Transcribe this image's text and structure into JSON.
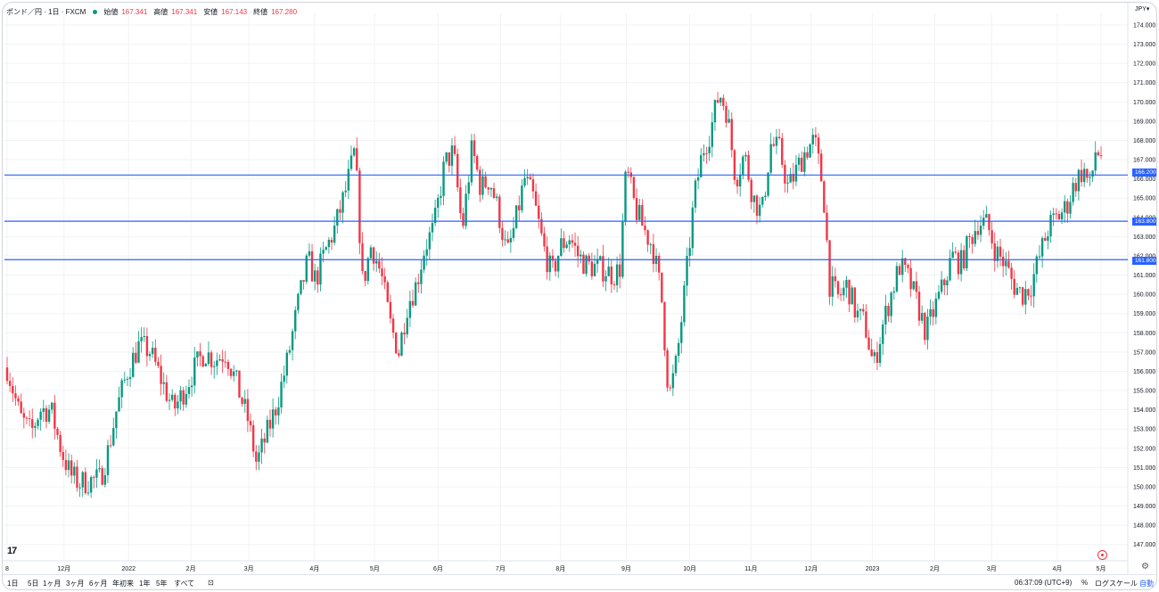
{
  "legend": {
    "symbol": "ポンド／円 · 1日 · FXCM",
    "open_label": "始値",
    "open": "167.341",
    "high_label": "高値",
    "high": "167.341",
    "low_label": "安値",
    "low": "167.143",
    "close_label": "終値",
    "close": "167.280"
  },
  "currency": "JPY",
  "price_tags": [
    "166.200",
    "163.800",
    "161.800"
  ],
  "colors": {
    "up": "#089981",
    "down": "#f23645",
    "hline": "#2962ff"
  },
  "toolbar": {
    "ranges": [
      "1日",
      "5日",
      "1ヶ月",
      "3ヶ月",
      "6ヶ月",
      "年初来",
      "1年",
      "5年",
      "すべて"
    ],
    "time": "06:37:09 (UTC+9)",
    "percent": "%",
    "log_scale": "ログスケール",
    "auto": "自動"
  },
  "chart_data": {
    "type": "candlestick",
    "ylim": [
      146.2,
      174.6
    ],
    "y_ticks": [
      "174.000",
      "173.000",
      "172.000",
      "171.000",
      "170.000",
      "169.000",
      "168.000",
      "167.000",
      "166.000",
      "165.000",
      "164.000",
      "163.000",
      "162.000",
      "161.000",
      "160.000",
      "159.000",
      "158.000",
      "157.000",
      "156.000",
      "155.000",
      "154.000",
      "153.000",
      "152.000",
      "151.000",
      "150.000",
      "149.000",
      "148.000",
      "147.000"
    ],
    "x_labels": [
      {
        "label": "8",
        "t": 0
      },
      {
        "label": "12月",
        "t": 0.052
      },
      {
        "label": "2022",
        "t": 0.111
      },
      {
        "label": "2月",
        "t": 0.168
      },
      {
        "label": "3月",
        "t": 0.221
      },
      {
        "label": "4月",
        "t": 0.281
      },
      {
        "label": "5月",
        "t": 0.336
      },
      {
        "label": "6月",
        "t": 0.394
      },
      {
        "label": "7月",
        "t": 0.451
      },
      {
        "label": "8月",
        "t": 0.506
      },
      {
        "label": "9月",
        "t": 0.566
      },
      {
        "label": "10月",
        "t": 0.624
      },
      {
        "label": "11月",
        "t": 0.68
      },
      {
        "label": "12月",
        "t": 0.735
      },
      {
        "label": "2023",
        "t": 0.791
      },
      {
        "label": "2月",
        "t": 0.848
      },
      {
        "label": "3月",
        "t": 0.9
      },
      {
        "label": "4月",
        "t": 0.96
      },
      {
        "label": "5月",
        "t": 1.0
      }
    ],
    "horizontal_lines": [
      166.2,
      163.8,
      161.8
    ],
    "close_path": [
      [
        0,
        156.2
      ],
      [
        0.012,
        153.6
      ],
      [
        0.022,
        152.8
      ],
      [
        0.03,
        154.0
      ],
      [
        0.04,
        154.0
      ],
      [
        0.05,
        151.8
      ],
      [
        0.058,
        150.6
      ],
      [
        0.066,
        150.2
      ],
      [
        0.075,
        150.3
      ],
      [
        0.085,
        150.4
      ],
      [
        0.092,
        151.8
      ],
      [
        0.1,
        154.0
      ],
      [
        0.11,
        156.0
      ],
      [
        0.12,
        157.3
      ],
      [
        0.13,
        157.1
      ],
      [
        0.14,
        155.7
      ],
      [
        0.152,
        154.0
      ],
      [
        0.16,
        154.8
      ],
      [
        0.17,
        156.0
      ],
      [
        0.18,
        157.0
      ],
      [
        0.19,
        156.6
      ],
      [
        0.2,
        157.0
      ],
      [
        0.21,
        155.3
      ],
      [
        0.22,
        153.5
      ],
      [
        0.228,
        151.2
      ],
      [
        0.236,
        152.5
      ],
      [
        0.246,
        154.2
      ],
      [
        0.256,
        156.5
      ],
      [
        0.266,
        159.5
      ],
      [
        0.275,
        161.8
      ],
      [
        0.282,
        160.7
      ],
      [
        0.29,
        162.1
      ],
      [
        0.3,
        163.5
      ],
      [
        0.31,
        165.5
      ],
      [
        0.318,
        167.5
      ],
      [
        0.325,
        160.5
      ],
      [
        0.333,
        162.6
      ],
      [
        0.342,
        161.0
      ],
      [
        0.35,
        158.5
      ],
      [
        0.358,
        157.0
      ],
      [
        0.366,
        159.5
      ],
      [
        0.374,
        160.5
      ],
      [
        0.382,
        162.5
      ],
      [
        0.39,
        163.4
      ],
      [
        0.4,
        166.8
      ],
      [
        0.408,
        167.4
      ],
      [
        0.416,
        163.3
      ],
      [
        0.425,
        167.6
      ],
      [
        0.433,
        165.5
      ],
      [
        0.441,
        166.0
      ],
      [
        0.449,
        164.3
      ],
      [
        0.457,
        162.0
      ],
      [
        0.465,
        163.8
      ],
      [
        0.473,
        166.0
      ],
      [
        0.481,
        165.0
      ],
      [
        0.49,
        162.5
      ],
      [
        0.498,
        161.0
      ],
      [
        0.506,
        162.5
      ],
      [
        0.514,
        163.0
      ],
      [
        0.522,
        162.0
      ],
      [
        0.53,
        161.5
      ],
      [
        0.538,
        161.4
      ],
      [
        0.546,
        161.3
      ],
      [
        0.554,
        161.0
      ],
      [
        0.56,
        161.3
      ],
      [
        0.566,
        166.5
      ],
      [
        0.574,
        164.5
      ],
      [
        0.582,
        163.4
      ],
      [
        0.59,
        162.5
      ],
      [
        0.598,
        160.0
      ],
      [
        0.605,
        154.6
      ],
      [
        0.612,
        156.5
      ],
      [
        0.62,
        160.5
      ],
      [
        0.628,
        165.0
      ],
      [
        0.636,
        167.5
      ],
      [
        0.643,
        168.5
      ],
      [
        0.651,
        170.5
      ],
      [
        0.658,
        169.5
      ],
      [
        0.666,
        166.0
      ],
      [
        0.674,
        167.3
      ],
      [
        0.682,
        165.0
      ],
      [
        0.69,
        164.2
      ],
      [
        0.698,
        167.8
      ],
      [
        0.706,
        167.5
      ],
      [
        0.714,
        165.5
      ],
      [
        0.722,
        166.5
      ],
      [
        0.73,
        167.5
      ],
      [
        0.738,
        168.0
      ],
      [
        0.746,
        165.5
      ],
      [
        0.752,
        160.5
      ],
      [
        0.76,
        159.8
      ],
      [
        0.768,
        160.5
      ],
      [
        0.776,
        159.0
      ],
      [
        0.784,
        158.5
      ],
      [
        0.792,
        156.2
      ],
      [
        0.8,
        158.3
      ],
      [
        0.808,
        160.0
      ],
      [
        0.816,
        161.5
      ],
      [
        0.824,
        160.8
      ],
      [
        0.832,
        159.5
      ],
      [
        0.84,
        158.0
      ],
      [
        0.848,
        159.3
      ],
      [
        0.856,
        160.5
      ],
      [
        0.864,
        162.0
      ],
      [
        0.872,
        161.6
      ],
      [
        0.88,
        162.8
      ],
      [
        0.888,
        163.8
      ],
      [
        0.896,
        163.6
      ],
      [
        0.904,
        162.2
      ],
      [
        0.912,
        161.6
      ],
      [
        0.92,
        160.5
      ],
      [
        0.928,
        160.0
      ],
      [
        0.936,
        160.5
      ],
      [
        0.944,
        162.0
      ],
      [
        0.952,
        163.5
      ],
      [
        0.96,
        164.0
      ],
      [
        0.968,
        164.5
      ],
      [
        0.976,
        165.8
      ],
      [
        0.984,
        166.5
      ],
      [
        0.99,
        165.5
      ],
      [
        0.995,
        167.5
      ],
      [
        1,
        167.28
      ]
    ]
  }
}
